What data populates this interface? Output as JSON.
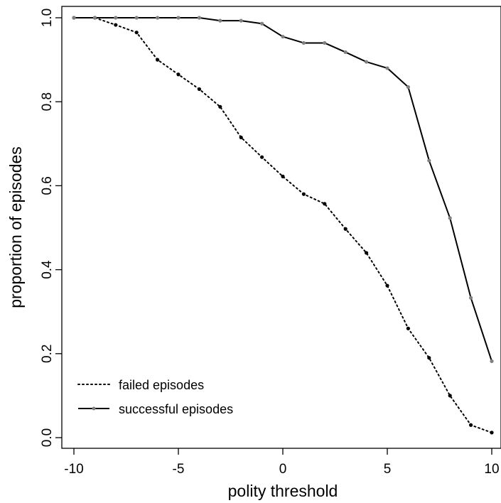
{
  "chart_data": {
    "type": "line",
    "xlabel": "polity threshold",
    "ylabel": "proportion of episodes",
    "xlim": [
      -10,
      10
    ],
    "ylim": [
      0,
      1
    ],
    "x_ticks": [
      -10,
      -5,
      0,
      5,
      10
    ],
    "y_ticks": [
      0.0,
      0.2,
      0.4,
      0.6,
      0.8,
      1.0
    ],
    "x_tick_labels": [
      "-10",
      "-5",
      "0",
      "5",
      "10"
    ],
    "y_tick_labels": [
      "0.0",
      "0.2",
      "0.4",
      "0.6",
      "0.8",
      "1.0"
    ],
    "grid": false,
    "legend_position": "bottom-left",
    "x": [
      -10,
      -9,
      -8,
      -7,
      -6,
      -5,
      -4,
      -3,
      -2,
      -1,
      0,
      1,
      2,
      3,
      4,
      5,
      6,
      7,
      8,
      9,
      10
    ],
    "series": [
      {
        "name": "failed episodes",
        "line_style": "dotted",
        "color": "#000000",
        "values": [
          1.0,
          1.0,
          0.983,
          0.965,
          0.9,
          0.865,
          0.83,
          0.788,
          0.715,
          0.668,
          0.622,
          0.58,
          0.557,
          0.497,
          0.44,
          0.362,
          0.26,
          0.19,
          0.1,
          0.03,
          0.012
        ]
      },
      {
        "name": "successful episodes",
        "line_style": "solid",
        "color": "#000000",
        "marker_color": "#808080",
        "values": [
          1.0,
          1.0,
          1.0,
          1.0,
          1.0,
          1.0,
          1.0,
          0.993,
          0.993,
          0.986,
          0.955,
          0.94,
          0.94,
          0.918,
          0.895,
          0.88,
          0.835,
          0.66,
          0.523,
          0.333,
          0.182
        ]
      }
    ]
  }
}
